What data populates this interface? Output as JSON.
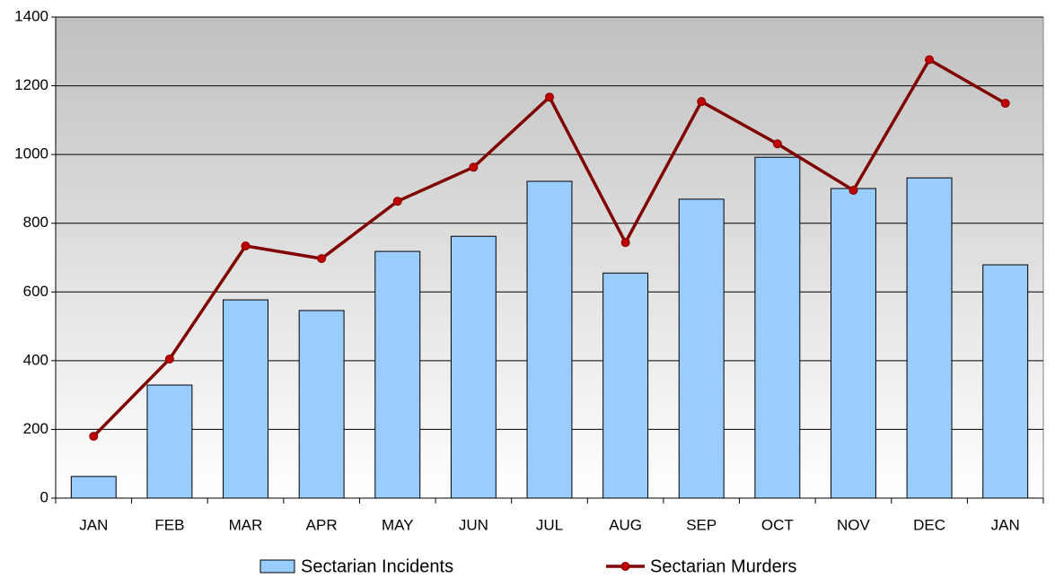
{
  "chart_data": {
    "type": "bar",
    "categories": [
      "JAN",
      "FEB",
      "MAR",
      "APR",
      "MAY",
      "JUN",
      "JUL",
      "AUG",
      "SEP",
      "OCT",
      "NOV",
      "DEC",
      "JAN"
    ],
    "series": [
      {
        "name": "Sectarian Incidents",
        "type": "bar",
        "color": "#99ccff",
        "values": [
          63,
          329,
          577,
          546,
          718,
          762,
          922,
          655,
          870,
          992,
          901,
          932,
          679
        ]
      },
      {
        "name": "Sectarian Murders",
        "type": "line",
        "color": "#800000",
        "values": [
          180,
          405,
          734,
          697,
          864,
          963,
          1167,
          744,
          1154,
          1031,
          896,
          1276,
          1149
        ]
      }
    ],
    "ylim": [
      0,
      1400
    ],
    "yticks": [
      0,
      200,
      400,
      600,
      800,
      1000,
      1200,
      1400
    ],
    "grid": true,
    "legend": "bottom"
  }
}
